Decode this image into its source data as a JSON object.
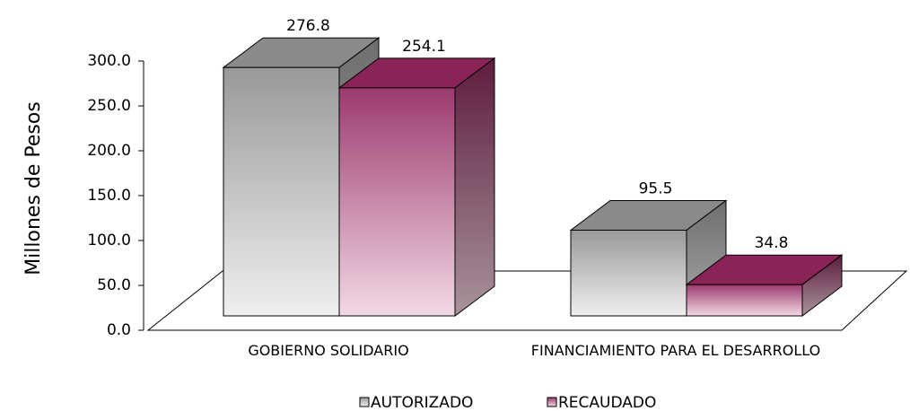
{
  "chart_data": {
    "type": "bar3d",
    "y_label": "Millones de Pesos",
    "categories": [
      "GOBIERNO SOLIDARIO",
      "FINANCIAMIENTO PARA EL DESARROLLO"
    ],
    "series": [
      {
        "name": "AUTORIZADO",
        "color": "#9a9a9a",
        "values": [
          276.8,
          95.5
        ]
      },
      {
        "name": "RECAUDADO",
        "color": "#8a2456",
        "values": [
          254.1,
          34.8
        ]
      }
    ],
    "ylim": [
      0,
      300
    ],
    "yticks": [
      {
        "value": 0,
        "label": "0.0"
      },
      {
        "value": 50,
        "label": "50.0"
      },
      {
        "value": 100,
        "label": "100.0"
      },
      {
        "value": 150,
        "label": "150.0"
      },
      {
        "value": 200,
        "label": "200.0"
      },
      {
        "value": 250,
        "label": "250.0"
      },
      {
        "value": 300,
        "label": "300.0"
      }
    ],
    "legend": "bottom"
  }
}
